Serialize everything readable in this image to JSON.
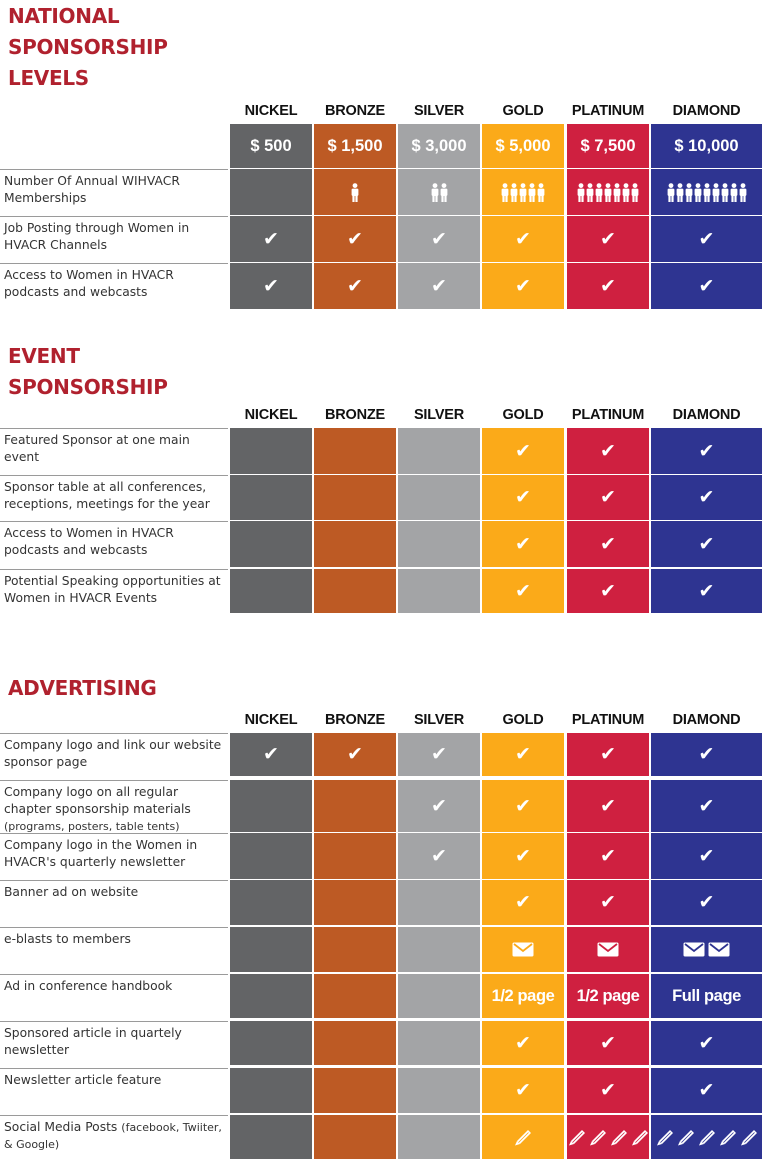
{
  "tiers": [
    "NICKEL",
    "BRONZE",
    "SILVER",
    "GOLD",
    "PLATINUM",
    "DIAMOND"
  ],
  "colors": {
    "title": "#b0212e",
    "nickel": "#636466",
    "bronze": "#bd5a24",
    "silver": "#a3a4a6",
    "gold": "#fbaa19",
    "platinum": "#cf2040",
    "diamond": "#2e3491"
  },
  "sections": [
    {
      "id": "national",
      "title": "NATIONAL\nSPONSORSHIP\nLEVELS",
      "prices": [
        "$ 500",
        "$ 1,500",
        "$ 3,000",
        "$ 5,000",
        "$ 7,500",
        "$ 10,000"
      ],
      "rows": [
        {
          "label": "Number Of Annual WIHVACR Memberships",
          "cells": [
            {
              "people": 0
            },
            {
              "people": 1
            },
            {
              "people": 2
            },
            {
              "people": 5
            },
            {
              "people": 7
            },
            {
              "people": 9
            }
          ]
        },
        {
          "label": "Job Posting through Women in HVACR Channels",
          "cells": [
            {
              "icon": "check"
            },
            {
              "icon": "check"
            },
            {
              "icon": "check"
            },
            {
              "icon": "check"
            },
            {
              "icon": "check"
            },
            {
              "icon": "check"
            }
          ]
        },
        {
          "label": "Access to Women in HVACR podcasts and webcasts",
          "cells": [
            {
              "icon": "check"
            },
            {
              "icon": "check"
            },
            {
              "icon": "check"
            },
            {
              "icon": "check"
            },
            {
              "icon": "check"
            },
            {
              "icon": "check"
            }
          ]
        }
      ]
    },
    {
      "id": "event",
      "title": "EVENT\nSPONSORSHIP",
      "rows": [
        {
          "label": "Featured Sponsor at one main event",
          "cells": [
            {},
            {},
            {},
            {
              "icon": "check"
            },
            {
              "icon": "check"
            },
            {
              "icon": "check"
            }
          ]
        },
        {
          "label": "Sponsor table at all conferences, receptions, meetings for the year",
          "cells": [
            {},
            {},
            {},
            {
              "icon": "check"
            },
            {
              "icon": "check"
            },
            {
              "icon": "check"
            }
          ]
        },
        {
          "label": "Access to Women in HVACR podcasts and webcasts",
          "cells": [
            {},
            {},
            {},
            {
              "icon": "check"
            },
            {
              "icon": "check"
            },
            {
              "icon": "check"
            }
          ]
        },
        {
          "label": "Potential Speaking opportunities at Women in HVACR Events",
          "cells": [
            {},
            {},
            {},
            {
              "icon": "check"
            },
            {
              "icon": "check"
            },
            {
              "icon": "check"
            }
          ]
        }
      ]
    },
    {
      "id": "advertising",
      "title": "ADVERTISING",
      "rows": [
        {
          "label": "Company logo and link our website sponsor page",
          "cells": [
            {
              "icon": "check"
            },
            {
              "icon": "check"
            },
            {
              "icon": "check"
            },
            {
              "icon": "check"
            },
            {
              "icon": "check"
            },
            {
              "icon": "check"
            }
          ]
        },
        {
          "label": "Company logo on all regular chapter sponsorship materials",
          "label_small": "(programs, posters, table tents)",
          "cells": [
            {},
            {},
            {
              "icon": "check"
            },
            {
              "icon": "check"
            },
            {
              "icon": "check"
            },
            {
              "icon": "check"
            }
          ]
        },
        {
          "label": "Company logo in the Women in HVACR's quarterly newsletter",
          "cells": [
            {},
            {},
            {
              "icon": "check"
            },
            {
              "icon": "check"
            },
            {
              "icon": "check"
            },
            {
              "icon": "check"
            }
          ]
        },
        {
          "label": "Banner ad on website",
          "cells": [
            {},
            {},
            {},
            {
              "icon": "check"
            },
            {
              "icon": "check"
            },
            {
              "icon": "check"
            }
          ]
        },
        {
          "label": "e-blasts to members",
          "cells": [
            {},
            {},
            {},
            {
              "icon": "envelope",
              "count": 1
            },
            {
              "icon": "envelope",
              "count": 1
            },
            {
              "icon": "envelope",
              "count": 2
            }
          ]
        },
        {
          "label": "Ad in conference handbook",
          "cells": [
            {},
            {},
            {},
            {
              "text": "1/2 page"
            },
            {
              "text": "1/2 page"
            },
            {
              "text": "Full page"
            }
          ]
        },
        {
          "label": "Sponsored article in quartely newsletter",
          "cells": [
            {},
            {},
            {},
            {
              "icon": "check"
            },
            {
              "icon": "check"
            },
            {
              "icon": "check"
            }
          ]
        },
        {
          "label": "Newsletter article feature",
          "cells": [
            {},
            {},
            {},
            {
              "icon": "check"
            },
            {
              "icon": "check"
            },
            {
              "icon": "check"
            }
          ]
        },
        {
          "label": "Social Media Posts",
          "label_small": "(facebook, Twiiter, & Google)",
          "cells": [
            {},
            {},
            {},
            {
              "icon": "pencil",
              "count": 1
            },
            {
              "icon": "pencil",
              "count": 4
            },
            {
              "icon": "pencil",
              "count": 5
            }
          ]
        }
      ]
    }
  ]
}
